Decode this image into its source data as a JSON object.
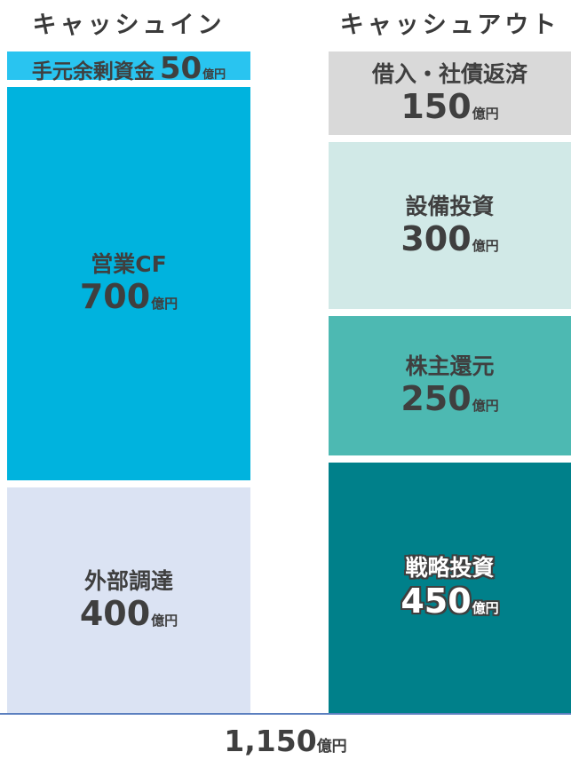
{
  "chart_data": {
    "type": "bar",
    "unit": "億円",
    "columns": [
      {
        "title": "キャッシュイン",
        "segments": [
          {
            "label": "手元余剰資金",
            "value": 50,
            "value_text": "50",
            "color": "#29c4f0"
          },
          {
            "label": "営業CF",
            "value": 700,
            "value_text": "700",
            "color": "#00b3de"
          },
          {
            "label": "外部調達",
            "value": 400,
            "value_text": "400",
            "color": "#dbe3f3"
          }
        ]
      },
      {
        "title": "キャッシュアウト",
        "segments": [
          {
            "label": "借入・社債返済",
            "value": 150,
            "value_text": "150",
            "color": "#d9d9d9"
          },
          {
            "label": "設備投資",
            "value": 300,
            "value_text": "300",
            "color": "#d1e9e7"
          },
          {
            "label": "株主還元",
            "value": 250,
            "value_text": "250",
            "color": "#4db9b2"
          },
          {
            "label": "戦略投資",
            "value": 450,
            "value_text": "450",
            "color": "#00808a"
          }
        ]
      }
    ],
    "total": {
      "value": 1150,
      "value_text": "1,150",
      "unit": "億円"
    }
  }
}
